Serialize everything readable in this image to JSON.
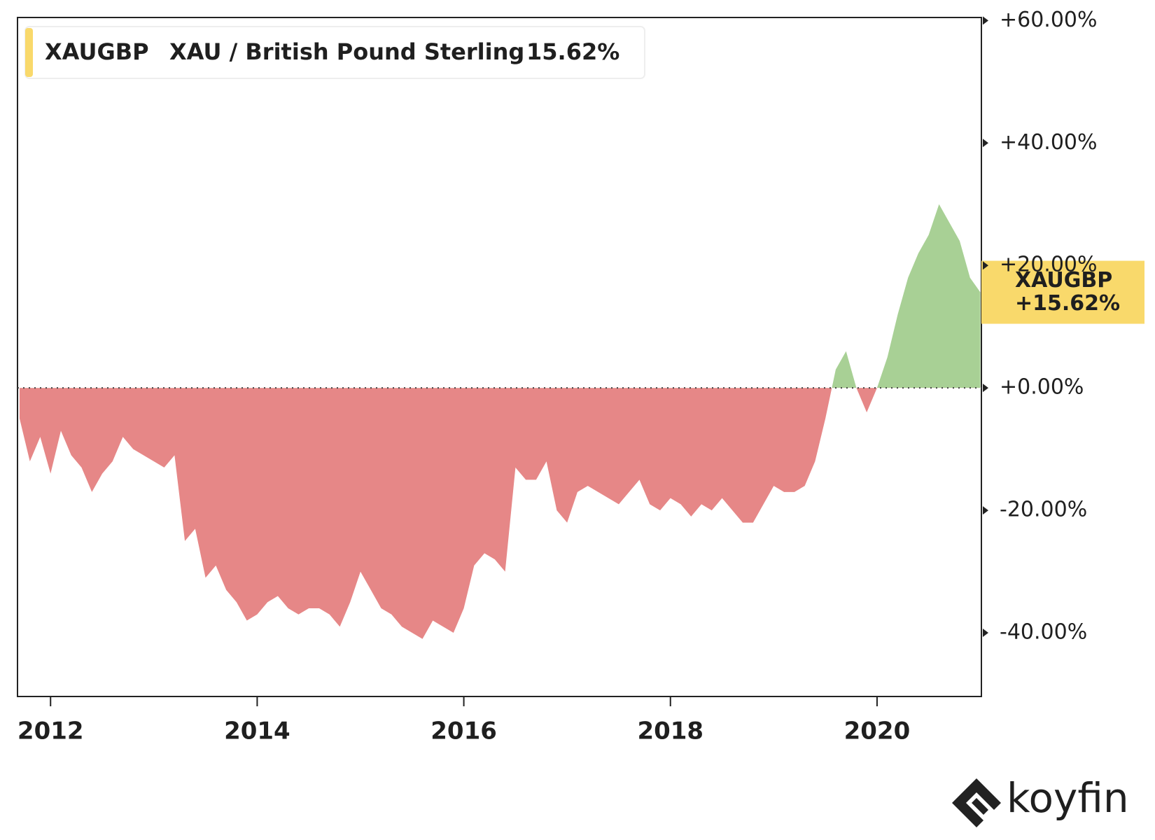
{
  "chart_data": {
    "type": "area",
    "series": [
      {
        "name": "XAUGBP",
        "description": "XAU / British Pound Sterling",
        "legend_value": "15.62%",
        "last_label": "+15.62%",
        "color": "#f9d96b",
        "positive_color": "#a8d095",
        "negative_color": "#e68787",
        "x": [
          2011.7,
          2011.8,
          2011.9,
          2012.0,
          2012.1,
          2012.2,
          2012.3,
          2012.4,
          2012.5,
          2012.6,
          2012.7,
          2012.8,
          2012.9,
          2013.0,
          2013.1,
          2013.2,
          2013.3,
          2013.4,
          2013.5,
          2013.6,
          2013.7,
          2013.8,
          2013.9,
          2014.0,
          2014.1,
          2014.2,
          2014.3,
          2014.4,
          2014.5,
          2014.6,
          2014.7,
          2014.8,
          2014.9,
          2015.0,
          2015.1,
          2015.2,
          2015.3,
          2015.4,
          2015.5,
          2015.6,
          2015.7,
          2015.8,
          2015.9,
          2016.0,
          2016.1,
          2016.2,
          2016.3,
          2016.4,
          2016.5,
          2016.6,
          2016.7,
          2016.8,
          2016.9,
          2017.0,
          2017.1,
          2017.2,
          2017.3,
          2017.4,
          2017.5,
          2017.6,
          2017.7,
          2017.8,
          2017.9,
          2018.0,
          2018.1,
          2018.2,
          2018.3,
          2018.4,
          2018.5,
          2018.6,
          2018.7,
          2018.8,
          2018.9,
          2019.0,
          2019.1,
          2019.2,
          2019.3,
          2019.4,
          2019.5,
          2019.6,
          2019.7,
          2019.8,
          2019.9,
          2020.0,
          2020.1,
          2020.2,
          2020.3,
          2020.4,
          2020.5,
          2020.6,
          2020.7,
          2020.8,
          2020.9,
          2021.0
        ],
        "values": [
          -5,
          -12,
          -8,
          -14,
          -7,
          -11,
          -13,
          -17,
          -14,
          -12,
          -8,
          -10,
          -11,
          -12,
          -13,
          -11,
          -25,
          -23,
          -31,
          -29,
          -33,
          -35,
          -38,
          -37,
          -35,
          -34,
          -36,
          -37,
          -36,
          -36,
          -37,
          -39,
          -35,
          -30,
          -33,
          -36,
          -37,
          -39,
          -40,
          -41,
          -38,
          -39,
          -40,
          -36,
          -29,
          -27,
          -28,
          -30,
          -13,
          -15,
          -15,
          -12,
          -20,
          -22,
          -17,
          -16,
          -17,
          -18,
          -19,
          -17,
          -15,
          -19,
          -20,
          -18,
          -19,
          -21,
          -19,
          -20,
          -18,
          -20,
          -22,
          -22,
          -19,
          -16,
          -17,
          -17,
          -16,
          -12,
          -5,
          3,
          6,
          0,
          -4,
          0,
          5,
          12,
          18,
          22,
          25,
          30,
          27,
          24,
          18,
          15.62
        ]
      }
    ],
    "xlim": [
      2011.68,
      2021.01
    ],
    "xticks": [
      2012,
      2014,
      2016,
      2018,
      2020
    ],
    "ylim": [
      -50.4,
      60.5
    ],
    "yticks": [
      {
        "value": -40,
        "label": "-40.00%"
      },
      {
        "value": -20,
        "label": "-20.00%"
      },
      {
        "value": 0,
        "label": "+0.00%"
      },
      {
        "value": 20,
        "label": "+20.00%"
      },
      {
        "value": 40,
        "label": "+40.00%"
      },
      {
        "value": 60,
        "label": "+60.00%"
      }
    ],
    "brand": "koyfin"
  }
}
